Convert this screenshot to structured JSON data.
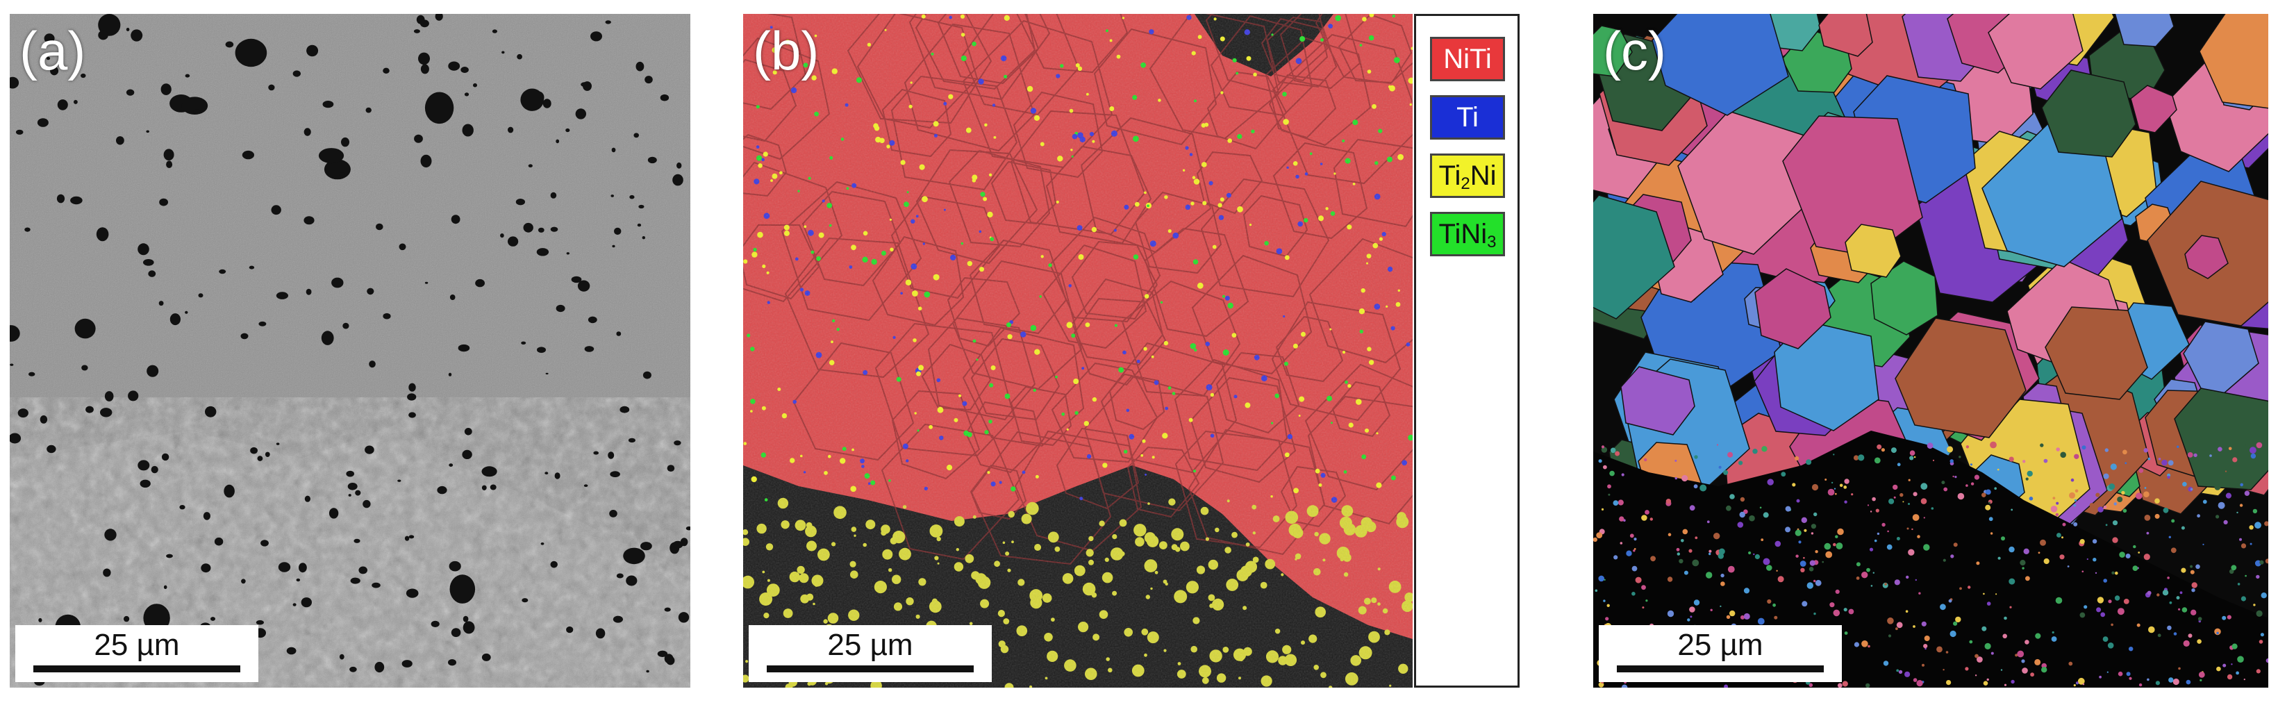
{
  "panels": {
    "a": {
      "label": "(a)",
      "scale_bar": "25 µm"
    },
    "b": {
      "label": "(b)",
      "scale_bar": "25 µm"
    },
    "c": {
      "label": "(c)",
      "scale_bar": "25 µm"
    }
  },
  "legend": {
    "items": [
      {
        "pre": "NiTi",
        "sub": "",
        "post": "",
        "color": "#e8383b",
        "text_color": "#ffffff"
      },
      {
        "pre": "Ti",
        "sub": "",
        "post": "",
        "color": "#1a2fd6",
        "text_color": "#ffffff"
      },
      {
        "pre": "Ti",
        "sub": "2",
        "post": "Ni",
        "color": "#f2f229",
        "text_color": "#111111"
      },
      {
        "pre": "TiNi",
        "sub": "3",
        "post": "",
        "color": "#23e02a",
        "text_color": "#111111"
      }
    ]
  }
}
